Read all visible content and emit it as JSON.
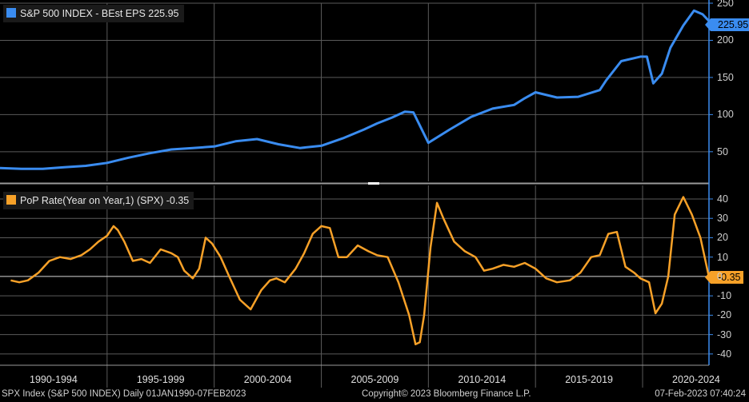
{
  "chart_data": [
    {
      "type": "line",
      "legend": "S&P 500 INDEX - BEst EPS 225.95",
      "last_value": "225.95",
      "color": "#3a8cf0",
      "y_ticks": [
        "50",
        "100",
        "150",
        "200",
        "250"
      ],
      "ylim": [
        10,
        250
      ],
      "grid": true,
      "legend_position": "top-left",
      "x": [
        1990,
        1991,
        1992,
        1993,
        1994,
        1995,
        1996,
        1997,
        1998,
        1999,
        2000,
        2001,
        2002,
        2003,
        2004,
        2005,
        2006,
        2007,
        2007.6,
        2008.3,
        2008.9,
        2009.3,
        2010,
        2011,
        2012,
        2013,
        2014,
        2014.5,
        2015,
        2016,
        2017,
        2018,
        2018.3,
        2019,
        2019.9,
        2020.2,
        2020.5,
        2020.9,
        2021.3,
        2021.9,
        2022.4,
        2022.8,
        2023.1
      ],
      "values": [
        28,
        27,
        27,
        29,
        31,
        35,
        42,
        48,
        53,
        55,
        57,
        64,
        67,
        60,
        55,
        58,
        68,
        80,
        88,
        96,
        104,
        103,
        62,
        80,
        97,
        108,
        113,
        122,
        130,
        123,
        124,
        133,
        146,
        172,
        178,
        178,
        142,
        155,
        190,
        220,
        240,
        235,
        226
      ]
    },
    {
      "type": "line",
      "legend": "PoP Rate(Year on Year,1) (SPX) -0.35",
      "last_value": "-0.35",
      "color": "#f7a128",
      "y_ticks": [
        "40",
        "30",
        "20",
        "10",
        "0",
        "-10",
        "-20",
        "-30",
        "-40"
      ],
      "ylim": [
        -45,
        47
      ],
      "grid": true,
      "legend_position": "top-left",
      "x": [
        1990.5,
        1990.9,
        1991.3,
        1991.8,
        1992.3,
        1992.8,
        1993.3,
        1993.8,
        1994.2,
        1994.6,
        1995,
        1995.3,
        1995.5,
        1995.8,
        1996.2,
        1996.6,
        1997,
        1997.5,
        1998,
        1998.3,
        1998.6,
        1999,
        1999.3,
        1999.6,
        1999.9,
        2000.3,
        2000.7,
        2001.2,
        2001.7,
        2002.2,
        2002.6,
        2002.9,
        2003.3,
        2003.8,
        2004.2,
        2004.6,
        2005,
        2005.4,
        2005.8,
        2006.2,
        2006.7,
        2007.2,
        2007.6,
        2008.1,
        2008.6,
        2009.1,
        2009.4,
        2009.6,
        2009.8,
        2010.1,
        2010.4,
        2010.7,
        2011.2,
        2011.7,
        2012.2,
        2012.6,
        2013,
        2013.5,
        2014,
        2014.5,
        2015,
        2015.5,
        2016,
        2016.6,
        2017.1,
        2017.6,
        2018,
        2018.4,
        2018.8,
        2019.2,
        2019.6,
        2019.9,
        2020.3,
        2020.6,
        2020.9,
        2021.2,
        2021.5,
        2021.9,
        2022.3,
        2022.7,
        2023.1
      ],
      "values": [
        -2,
        -3,
        -2,
        2,
        8,
        10,
        9,
        11,
        14,
        18,
        21,
        26,
        24,
        18,
        8,
        9,
        7,
        14,
        12,
        10,
        3,
        -1,
        4,
        20,
        17,
        10,
        0,
        -12,
        -17,
        -7,
        -2,
        -1,
        -3,
        4,
        12,
        22,
        26,
        25,
        10,
        10,
        16,
        13,
        11,
        10,
        -3,
        -20,
        -35,
        -34,
        -20,
        15,
        38,
        30,
        18,
        13,
        10,
        3,
        4,
        6,
        5,
        7,
        4,
        -1,
        -3,
        -2,
        2,
        10,
        11,
        22,
        23,
        5,
        2,
        -1,
        -3,
        -19,
        -14,
        0,
        32,
        41,
        32,
        20,
        -0.35
      ]
    }
  ],
  "x_axis": {
    "range": [
      1990,
      2023.1
    ],
    "period_labels": [
      "1990-1994",
      "1995-1999",
      "2000-2004",
      "2005-2009",
      "2010-2014",
      "2015-2019",
      "2020-2024"
    ]
  },
  "footer": {
    "left": "SPX Index (S&P 500 INDEX)  Daily 01JAN1990-07FEB2023",
    "center": "Copyright© 2023 Bloomberg Finance L.P.",
    "right": "07-Feb-2023 07:40:24"
  }
}
